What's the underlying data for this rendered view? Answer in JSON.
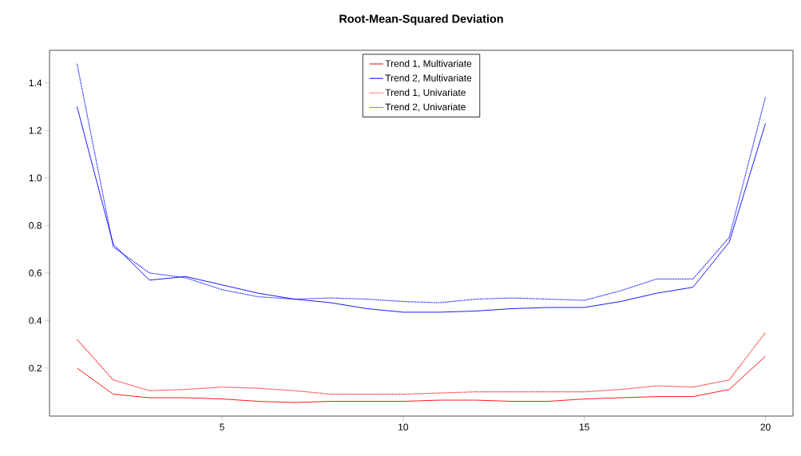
{
  "chart_data": {
    "type": "line",
    "title": "Root-Mean-Squared Deviation",
    "x": [
      1,
      2,
      3,
      4,
      5,
      6,
      7,
      8,
      9,
      10,
      11,
      12,
      13,
      14,
      15,
      16,
      17,
      18,
      19,
      20
    ],
    "xlim": [
      0.24,
      20.76
    ],
    "ylim": [
      -0.002,
      1.537
    ],
    "xticks": [
      5,
      10,
      15,
      20
    ],
    "yticks": [
      0.2,
      0.4,
      0.6,
      0.8,
      {
        "value": 1,
        "label": "1.0"
      },
      1.2,
      1.4
    ],
    "legend": "top",
    "grid": false,
    "marker": "none",
    "series": [
      {
        "name": "Trend 1, Multivariate",
        "color": "#ff0000",
        "line_style": "solid",
        "values": [
          0.2,
          0.09,
          0.075,
          0.075,
          0.07,
          0.06,
          0.055,
          0.06,
          0.06,
          0.06,
          0.065,
          0.065,
          0.06,
          0.06,
          0.07,
          0.075,
          0.08,
          0.08,
          0.11,
          0.25
        ]
      },
      {
        "name": "Trend 2, Multivariate",
        "color": "#0000ff",
        "line_style": "solid",
        "values": [
          1.3,
          0.72,
          0.57,
          0.585,
          0.55,
          0.515,
          0.49,
          0.475,
          0.45,
          0.435,
          0.435,
          0.44,
          0.45,
          0.455,
          0.455,
          0.48,
          0.515,
          0.54,
          0.73,
          1.23
        ]
      },
      {
        "name": "Trend 1, Univariate",
        "color": "#ff0000",
        "line_style": "dotted",
        "values": [
          0.32,
          0.15,
          0.105,
          0.11,
          0.12,
          0.115,
          0.105,
          0.09,
          0.09,
          0.09,
          0.095,
          0.1,
          0.1,
          0.1,
          0.1,
          0.11,
          0.125,
          0.12,
          0.15,
          0.35
        ]
      },
      {
        "name": "Trend 2, Univariate",
        "color": "#0000ff",
        "line_style": "dotted",
        "values": [
          1.48,
          0.71,
          0.6,
          0.58,
          0.53,
          0.5,
          0.49,
          0.495,
          0.49,
          0.48,
          0.475,
          0.49,
          0.495,
          0.49,
          0.485,
          0.525,
          0.575,
          0.575,
          0.75,
          1.34
        ]
      }
    ]
  }
}
